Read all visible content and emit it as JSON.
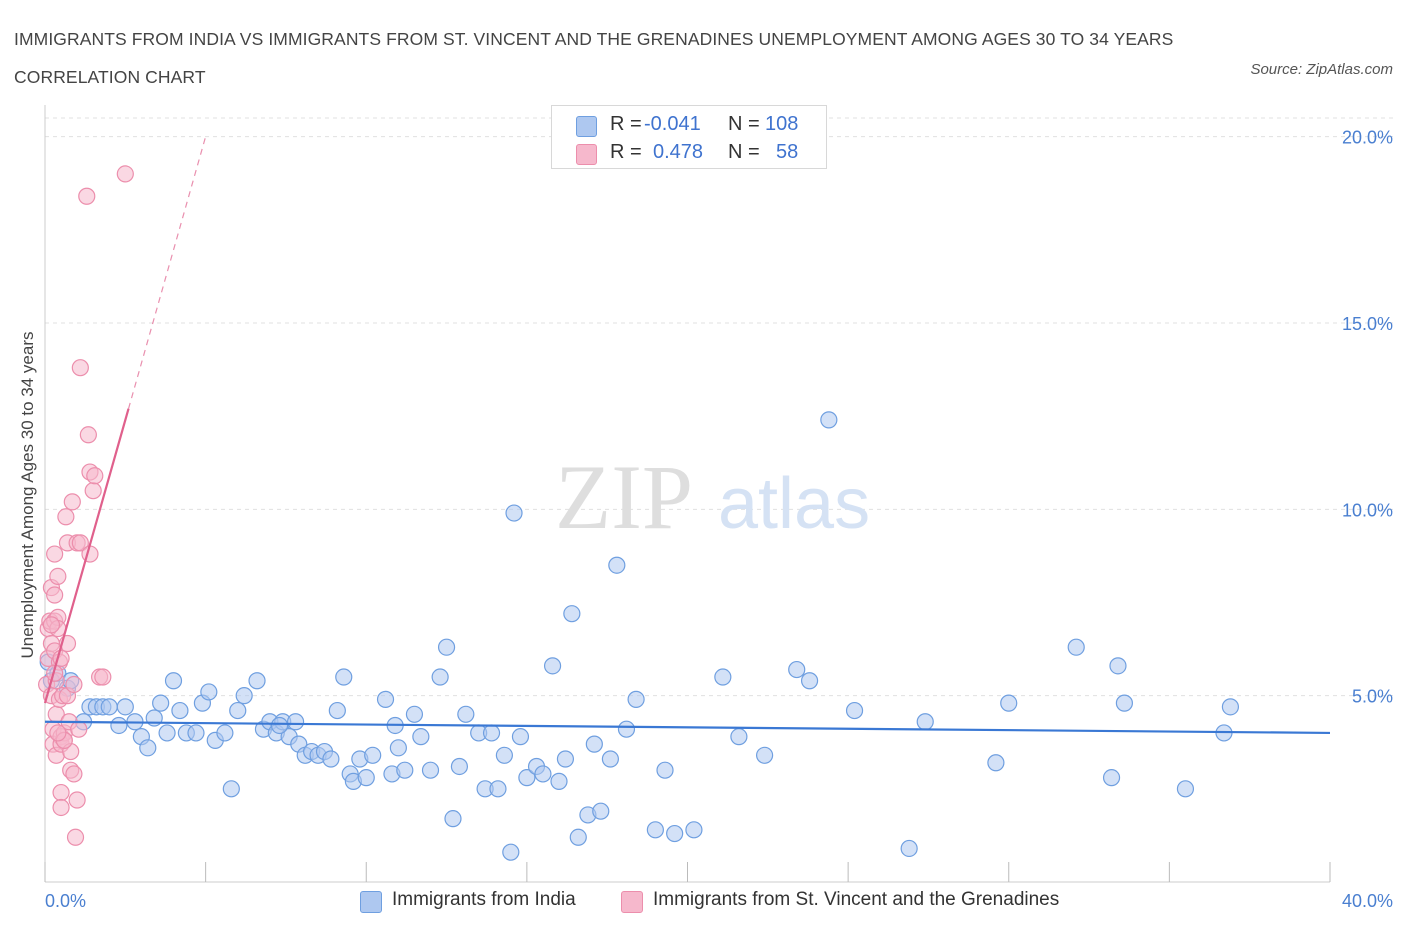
{
  "title": "IMMIGRANTS FROM INDIA VS IMMIGRANTS FROM ST. VINCENT AND THE GRENADINES UNEMPLOYMENT AMONG AGES 30 TO 34 YEARS CORRELATION CHART",
  "source": "Source: ZipAtlas.com",
  "watermark": {
    "zip": "ZIP",
    "atlas": "atlas"
  },
  "legend": {
    "rows": [
      {
        "r_label": "R =",
        "r_value": "-0.041",
        "n_label": "N =",
        "n_value": "108"
      },
      {
        "r_label": "R =",
        "r_value": "0.478",
        "n_label": "N =",
        "n_value": "58"
      }
    ]
  },
  "bottom_legend": [
    "Immigrants from India",
    "Immigrants from St. Vincent and the Grenadines"
  ],
  "colors": {
    "blue_fill": "#aec8f0",
    "blue_stroke": "#6f9fe0",
    "blue_line": "#3a78d4",
    "pink_fill": "#f6b8cc",
    "pink_stroke": "#ec8eac",
    "pink_line": "#e0608c",
    "tick_text": "#4a7fd0",
    "grid": "#e0e0e0"
  },
  "chart_data": {
    "type": "scatter",
    "title": "IMMIGRANTS FROM INDIA VS IMMIGRANTS FROM ST. VINCENT AND THE GRENADINES UNEMPLOYMENT AMONG AGES 30 TO 34 YEARS CORRELATION CHART",
    "xlabel": "",
    "ylabel": "Unemployment Among Ages 30 to 34 years",
    "xlim": [
      0,
      40
    ],
    "ylim": [
      0,
      20.5
    ],
    "x_tick_labels": [
      "0.0%",
      "40.0%"
    ],
    "y_ticks": [
      5,
      10,
      15,
      20
    ],
    "y_tick_labels": [
      "5.0%",
      "10.0%",
      "15.0%",
      "20.0%"
    ],
    "series": [
      {
        "name": "Immigrants from India",
        "R": -0.041,
        "N": 108,
        "trend": {
          "x": [
            0,
            40
          ],
          "y": [
            4.3,
            4.0
          ],
          "style": "solid"
        },
        "points": [
          [
            0.1,
            5.9
          ],
          [
            0.2,
            5.4
          ],
          [
            0.4,
            5.6
          ],
          [
            0.7,
            5.2
          ],
          [
            0.8,
            5.4
          ],
          [
            1.2,
            4.3
          ],
          [
            1.4,
            4.7
          ],
          [
            1.6,
            4.7
          ],
          [
            1.8,
            4.7
          ],
          [
            2.0,
            4.7
          ],
          [
            2.3,
            4.2
          ],
          [
            2.5,
            4.7
          ],
          [
            2.8,
            4.3
          ],
          [
            3.0,
            3.9
          ],
          [
            3.2,
            3.6
          ],
          [
            3.4,
            4.4
          ],
          [
            3.6,
            4.8
          ],
          [
            3.8,
            4.0
          ],
          [
            4.0,
            5.4
          ],
          [
            4.2,
            4.6
          ],
          [
            4.4,
            4.0
          ],
          [
            4.7,
            4.0
          ],
          [
            4.9,
            4.8
          ],
          [
            5.1,
            5.1
          ],
          [
            5.3,
            3.8
          ],
          [
            5.6,
            4.0
          ],
          [
            5.8,
            2.5
          ],
          [
            6.0,
            4.6
          ],
          [
            6.2,
            5.0
          ],
          [
            6.6,
            5.4
          ],
          [
            6.8,
            4.1
          ],
          [
            7.0,
            4.3
          ],
          [
            7.2,
            4.0
          ],
          [
            7.4,
            4.3
          ],
          [
            7.6,
            3.9
          ],
          [
            7.8,
            4.3
          ],
          [
            7.9,
            3.7
          ],
          [
            8.1,
            3.4
          ],
          [
            8.3,
            3.5
          ],
          [
            8.5,
            3.4
          ],
          [
            8.7,
            3.5
          ],
          [
            8.9,
            3.3
          ],
          [
            9.1,
            4.6
          ],
          [
            9.3,
            5.5
          ],
          [
            9.5,
            2.9
          ],
          [
            9.6,
            2.7
          ],
          [
            9.8,
            3.3
          ],
          [
            10.0,
            2.8
          ],
          [
            10.2,
            3.4
          ],
          [
            10.6,
            4.9
          ],
          [
            10.8,
            2.9
          ],
          [
            11.0,
            3.6
          ],
          [
            11.2,
            3.0
          ],
          [
            11.5,
            4.5
          ],
          [
            11.7,
            3.9
          ],
          [
            12.0,
            3.0
          ],
          [
            12.3,
            5.5
          ],
          [
            12.5,
            6.3
          ],
          [
            12.7,
            1.7
          ],
          [
            12.9,
            3.1
          ],
          [
            13.1,
            4.5
          ],
          [
            13.5,
            4.0
          ],
          [
            13.7,
            2.5
          ],
          [
            13.9,
            4.0
          ],
          [
            14.1,
            2.5
          ],
          [
            14.3,
            3.4
          ],
          [
            14.6,
            9.9
          ],
          [
            14.8,
            3.9
          ],
          [
            15.0,
            2.8
          ],
          [
            15.3,
            3.1
          ],
          [
            15.5,
            2.9
          ],
          [
            15.8,
            5.8
          ],
          [
            16.0,
            2.7
          ],
          [
            16.2,
            3.3
          ],
          [
            16.4,
            7.2
          ],
          [
            16.6,
            1.2
          ],
          [
            16.9,
            1.8
          ],
          [
            17.1,
            3.7
          ],
          [
            17.3,
            1.9
          ],
          [
            17.6,
            3.3
          ],
          [
            17.8,
            8.5
          ],
          [
            18.1,
            4.1
          ],
          [
            18.4,
            4.9
          ],
          [
            19.0,
            1.4
          ],
          [
            19.3,
            3.0
          ],
          [
            19.6,
            1.3
          ],
          [
            20.2,
            1.4
          ],
          [
            21.1,
            5.5
          ],
          [
            21.6,
            3.9
          ],
          [
            22.4,
            3.4
          ],
          [
            23.4,
            5.7
          ],
          [
            23.8,
            5.4
          ],
          [
            24.4,
            12.4
          ],
          [
            25.2,
            4.6
          ],
          [
            26.9,
            0.9
          ],
          [
            27.4,
            4.3
          ],
          [
            29.6,
            3.2
          ],
          [
            30.0,
            4.8
          ],
          [
            32.1,
            6.3
          ],
          [
            33.2,
            2.8
          ],
          [
            33.4,
            5.8
          ],
          [
            33.6,
            4.8
          ],
          [
            35.5,
            2.5
          ],
          [
            36.7,
            4.0
          ],
          [
            36.9,
            4.7
          ],
          [
            14.5,
            0.8
          ],
          [
            7.3,
            4.2
          ],
          [
            10.9,
            4.2
          ]
        ]
      },
      {
        "name": "Immigrants from St. Vincent and the Grenadines",
        "R": 0.478,
        "N": 58,
        "trend": {
          "x": [
            0,
            2.6
          ],
          "y": [
            4.8,
            12.7
          ],
          "style": "solid",
          "extended": {
            "x": [
              2.6,
              5.0
            ],
            "y": [
              12.7,
              20.0
            ],
            "style": "dashed"
          }
        },
        "points": [
          [
            0.05,
            5.3
          ],
          [
            0.1,
            6.0
          ],
          [
            0.1,
            6.8
          ],
          [
            0.15,
            7.0
          ],
          [
            0.2,
            7.9
          ],
          [
            0.2,
            6.4
          ],
          [
            0.2,
            5.0
          ],
          [
            0.25,
            4.1
          ],
          [
            0.25,
            3.7
          ],
          [
            0.3,
            8.8
          ],
          [
            0.3,
            7.7
          ],
          [
            0.3,
            7.0
          ],
          [
            0.3,
            6.2
          ],
          [
            0.35,
            5.4
          ],
          [
            0.35,
            4.5
          ],
          [
            0.35,
            3.4
          ],
          [
            0.4,
            8.2
          ],
          [
            0.4,
            7.1
          ],
          [
            0.4,
            6.8
          ],
          [
            0.45,
            5.9
          ],
          [
            0.45,
            4.9
          ],
          [
            0.5,
            3.9
          ],
          [
            0.5,
            3.7
          ],
          [
            0.5,
            2.4
          ],
          [
            0.5,
            2.0
          ],
          [
            0.55,
            5.0
          ],
          [
            0.6,
            4.0
          ],
          [
            0.6,
            3.8
          ],
          [
            0.65,
            9.8
          ],
          [
            0.7,
            9.1
          ],
          [
            0.7,
            6.4
          ],
          [
            0.7,
            5.0
          ],
          [
            0.75,
            4.3
          ],
          [
            0.8,
            3.5
          ],
          [
            0.8,
            3.0
          ],
          [
            0.85,
            10.2
          ],
          [
            0.9,
            5.3
          ],
          [
            0.9,
            2.9
          ],
          [
            0.95,
            1.2
          ],
          [
            1.0,
            9.1
          ],
          [
            1.05,
            4.1
          ],
          [
            1.0,
            2.2
          ],
          [
            1.1,
            9.1
          ],
          [
            1.1,
            13.8
          ],
          [
            1.3,
            18.4
          ],
          [
            1.35,
            12.0
          ],
          [
            1.4,
            11.0
          ],
          [
            1.5,
            10.5
          ],
          [
            1.55,
            10.9
          ],
          [
            1.4,
            8.8
          ],
          [
            1.7,
            5.5
          ],
          [
            1.8,
            5.5
          ],
          [
            2.5,
            19.0
          ],
          [
            0.6,
            3.8
          ],
          [
            0.4,
            4.0
          ],
          [
            0.5,
            6.0
          ],
          [
            0.2,
            6.9
          ],
          [
            0.3,
            5.6
          ]
        ]
      }
    ]
  }
}
